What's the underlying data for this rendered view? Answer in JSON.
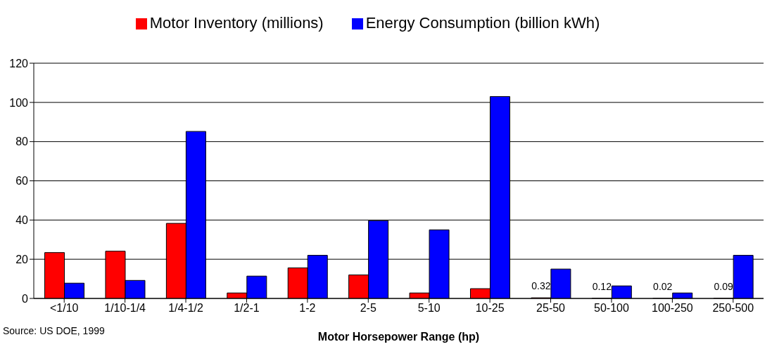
{
  "chart_data": {
    "type": "bar",
    "xlabel": "Motor Horsepower Range (hp)",
    "categories": [
      "<1/10",
      "1/10-1/4",
      "1/4-1/2",
      "1/2-1",
      "1-2",
      "2-5",
      "5-10",
      "10-25",
      "25-50",
      "50-100",
      "100-250",
      "250-500"
    ],
    "series": [
      {
        "name": "Motor Inventory (millions)",
        "color": "#ff0000",
        "values": [
          23.4,
          24.1,
          38.3,
          2.8,
          15.6,
          12,
          2.8,
          5,
          0.32,
          0.12,
          0.02,
          0.09
        ],
        "value_labels": [
          null,
          null,
          null,
          null,
          null,
          null,
          null,
          null,
          "0.32",
          "0.12",
          "0.02",
          "0.09"
        ]
      },
      {
        "name": "Energy Consumption (billion kWh)",
        "color": "#0000ff",
        "values": [
          7.8,
          9.2,
          85.2,
          11.4,
          22,
          39.7,
          35,
          103,
          15,
          6.4,
          2.8,
          22
        ]
      }
    ],
    "ylim": [
      0,
      120
    ],
    "yticks": [
      0,
      20,
      40,
      60,
      80,
      100,
      120
    ],
    "grid": "y",
    "legend": "top",
    "annotations": [
      "Source:  US DOE, 1999"
    ]
  }
}
